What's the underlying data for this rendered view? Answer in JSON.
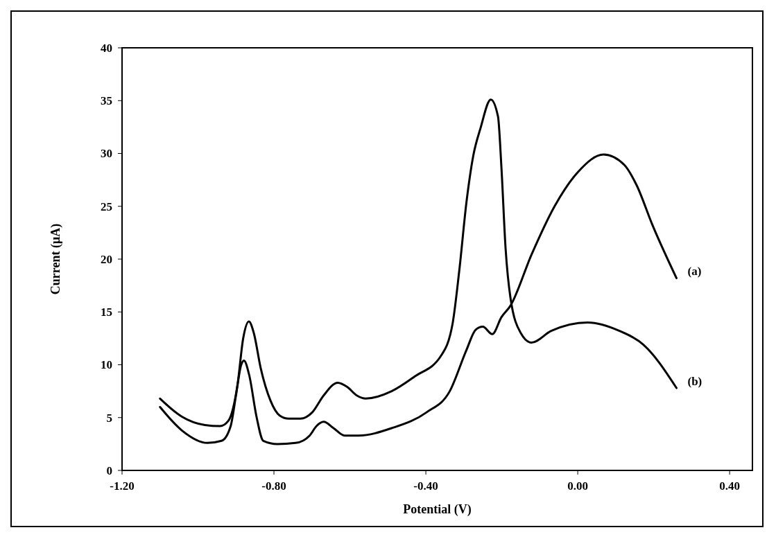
{
  "chart_data": {
    "type": "line",
    "xlabel": "Potential (V)",
    "ylabel": "Current (μA)",
    "xlim": [
      -1.2,
      0.46
    ],
    "ylim": [
      0,
      40
    ],
    "xticks": [
      {
        "value": -1.2,
        "label": "-1.20"
      },
      {
        "value": -0.8,
        "label": "-0.80"
      },
      {
        "value": -0.4,
        "label": "-0.40"
      },
      {
        "value": 0,
        "label": "0.00"
      },
      {
        "value": 0.4,
        "label": "0.40"
      }
    ],
    "yticks": [
      0,
      5,
      10,
      15,
      20,
      25,
      30,
      35,
      40
    ],
    "grid": false,
    "marker": "none",
    "line_style": "solid",
    "series": [
      {
        "name": "(a)",
        "color": "#000000",
        "x": [
          -1.1,
          -1.043,
          -0.975,
          -0.938,
          -0.914,
          -0.9,
          -0.887,
          -0.879,
          -0.865,
          -0.846,
          -0.828,
          -0.791,
          -0.743,
          -0.706,
          -0.688,
          -0.669,
          -0.643,
          -0.614,
          -0.577,
          -0.49,
          -0.398,
          -0.337,
          -0.293,
          -0.269,
          -0.25,
          -0.225,
          -0.201,
          -0.177,
          -0.122,
          -0.061,
          0.002,
          0.068,
          0.123,
          0.155,
          0.197,
          0.26
        ],
        "values": [
          6.0,
          3.8,
          2.6,
          2.8,
          4.2,
          7.1,
          9.9,
          10.4,
          9.0,
          5.1,
          2.8,
          2.5,
          2.6,
          3.3,
          4.2,
          4.6,
          4.0,
          3.3,
          3.3,
          4.0,
          5.5,
          7.5,
          11.4,
          13.3,
          13.6,
          12.9,
          14.5,
          15.6,
          20.4,
          25.0,
          28.3,
          29.9,
          28.9,
          27.0,
          23.2,
          18.2
        ]
      },
      {
        "name": "(b)",
        "color": "#000000",
        "x": [
          -1.1,
          -1.043,
          -0.982,
          -0.942,
          -0.92,
          -0.896,
          -0.881,
          -0.866,
          -0.853,
          -0.835,
          -0.809,
          -0.785,
          -0.761,
          -0.73,
          -0.699,
          -0.669,
          -0.632,
          -0.607,
          -0.582,
          -0.558,
          -0.49,
          -0.429,
          -0.361,
          -0.33,
          -0.312,
          -0.293,
          -0.275,
          -0.256,
          -0.229,
          -0.21,
          -0.201,
          -0.19,
          -0.177,
          -0.15,
          -0.122,
          -0.07,
          0.026,
          0.11,
          0.173,
          0.26
        ],
        "values": [
          6.8,
          5.1,
          4.3,
          4.2,
          4.7,
          8.1,
          12.5,
          14.1,
          13.0,
          9.7,
          6.6,
          5.2,
          4.9,
          4.9,
          5.5,
          7.1,
          8.3,
          7.9,
          7.1,
          6.8,
          7.5,
          8.9,
          10.8,
          13.8,
          18.9,
          25.4,
          29.8,
          32.4,
          35.1,
          33.5,
          28.7,
          21.0,
          16.3,
          13.0,
          12.1,
          13.2,
          14.0,
          13.2,
          11.9,
          7.8
        ]
      }
    ]
  }
}
